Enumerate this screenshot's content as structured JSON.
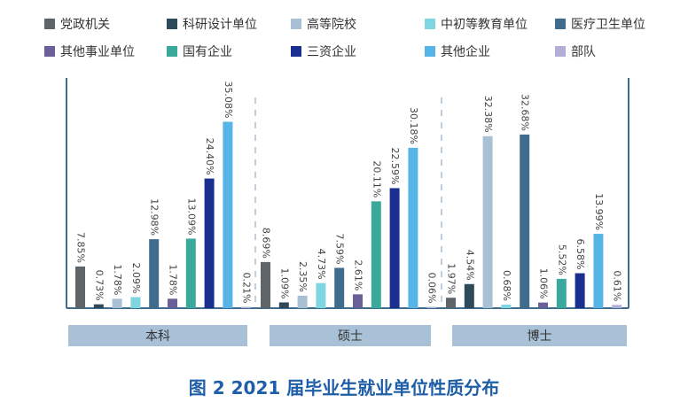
{
  "chart_data": {
    "type": "bar",
    "title": "图 2  2021 届毕业生就业单位性质分布",
    "groups": [
      "本科",
      "硕士",
      "博士"
    ],
    "series": [
      {
        "name": "党政机关",
        "color": "#5f6469",
        "values": [
          7.85,
          8.69,
          1.97
        ],
        "labels": [
          "7.85%",
          "8.69%",
          "1.97%"
        ]
      },
      {
        "name": "科研设计单位",
        "color": "#2e4a5a",
        "values": [
          0.73,
          1.09,
          4.54
        ],
        "labels": [
          "0.73%",
          "1.09%",
          "4.54%"
        ]
      },
      {
        "name": "高等院校",
        "color": "#a9bfd3",
        "values": [
          1.78,
          2.35,
          32.38
        ],
        "labels": [
          "1.78%",
          "2.35%",
          "32.38%"
        ]
      },
      {
        "name": "中初等教育单位",
        "color": "#7fd6e0",
        "values": [
          2.09,
          4.73,
          0.68
        ],
        "labels": [
          "2.09%",
          "4.73%",
          "0.68%"
        ]
      },
      {
        "name": "医疗卫生单位",
        "color": "#3f6b8c",
        "values": [
          12.98,
          7.59,
          32.68
        ],
        "labels": [
          "12.98%",
          "7.59%",
          "32.68%"
        ]
      },
      {
        "name": "其他事业单位",
        "color": "#6b5f9a",
        "values": [
          1.78,
          2.61,
          1.06
        ],
        "labels": [
          "1.78%",
          "2.61%",
          "1.06%"
        ]
      },
      {
        "name": "国有企业",
        "color": "#3aa89a",
        "values": [
          13.09,
          20.11,
          5.52
        ],
        "labels": [
          "13.09%",
          "20.11%",
          "5.52%"
        ]
      },
      {
        "name": "三资企业",
        "color": "#1a2f8f",
        "values": [
          24.4,
          22.59,
          6.58
        ],
        "labels": [
          "24.40%",
          "22.59%",
          "6.58%"
        ]
      },
      {
        "name": "其他企业",
        "color": "#56b4e6",
        "values": [
          35.08,
          30.18,
          13.99
        ],
        "labels": [
          "35.08%",
          "30.18%",
          "13.99%"
        ]
      },
      {
        "name": "部队",
        "color": "#b3aed6",
        "values": [
          0.21,
          0.06,
          0.61
        ],
        "labels": [
          "0.21%",
          "0.06%",
          "0.61%"
        ]
      }
    ]
  }
}
